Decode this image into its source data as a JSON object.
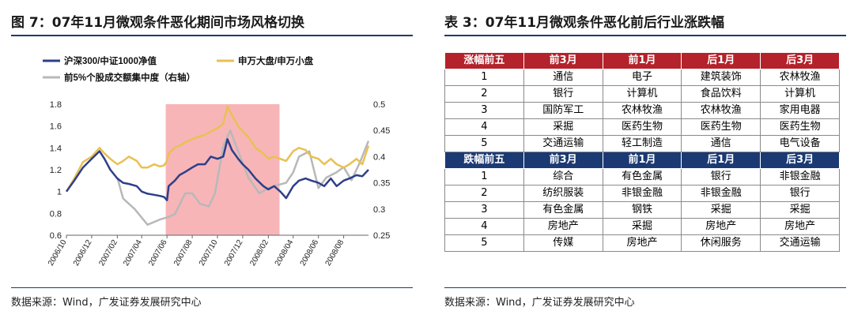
{
  "left_panel": {
    "title": "图 7：07年11月微观条件恶化期间市场风格切换",
    "source": "数据来源：Wind，广发证券发展研究中心"
  },
  "right_panel": {
    "title": "表 3：07年11月微观条件恶化前后行业涨跌幅",
    "source": "数据来源：Wind，广发证券发展研究中心"
  },
  "colors": {
    "series1": "#2d3f8a",
    "series2": "#e8c153",
    "series3": "#b8b8b8",
    "highlight": "#f6a8ac",
    "red_header": "#b4222b",
    "blue_header": "#1b3a73",
    "rule": "#1f3a6a"
  },
  "chart_data": {
    "type": "line",
    "title": "",
    "x": [
      "2006/10",
      "2006/12",
      "2007/02",
      "2007/04",
      "2007/06",
      "2007/08",
      "2007/10",
      "2007/12",
      "2008/02",
      "2008/04",
      "2008/06",
      "2008/08"
    ],
    "ylim": [
      0.6,
      1.8
    ],
    "yticks": [
      0.6,
      0.8,
      1,
      1.2,
      1.4,
      1.6,
      1.8
    ],
    "y2lim": [
      0.25,
      0.5
    ],
    "y2ticks": [
      0.25,
      0.3,
      0.35,
      0.4,
      0.45,
      0.5
    ],
    "legend": [
      "沪深300/中证1000净值",
      "申万大盘/申万小盘",
      "前5%个股成交额集中度（右轴）"
    ],
    "highlight_x_range": [
      "2007/05/29",
      "2008/02/28"
    ],
    "series": [
      {
        "name": "沪深300/中证1000净值",
        "axis": "left",
        "x": [
          "2006/10/01",
          "2006/10/20",
          "2006/11/10",
          "2006/12/01",
          "2006/12/20",
          "2007/01/01",
          "2007/01/15",
          "2007/02/01",
          "2007/02/15",
          "2007/03/01",
          "2007/03/20",
          "2007/04/01",
          "2007/04/15",
          "2007/05/01",
          "2007/05/15",
          "2007/05/25",
          "2007/06/01",
          "2007/06/05",
          "2007/06/20",
          "2007/07/01",
          "2007/07/15",
          "2007/08/01",
          "2007/08/15",
          "2007/09/01",
          "2007/09/15",
          "2007/10/01",
          "2007/10/15",
          "2007/10/25",
          "2007/11/05",
          "2007/11/20",
          "2007/12/01",
          "2007/12/15",
          "2008/01/01",
          "2008/01/20",
          "2008/02/01",
          "2008/02/15",
          "2008/03/01",
          "2008/03/15",
          "2008/04/01",
          "2008/04/15",
          "2008/05/01",
          "2008/05/15",
          "2008/06/01",
          "2008/06/15",
          "2008/07/01",
          "2008/07/15",
          "2008/08/01",
          "2008/08/15",
          "2008/09/01",
          "2008/09/15",
          "2008/09/30"
        ],
        "y": [
          1.0,
          1.1,
          1.22,
          1.3,
          1.37,
          1.3,
          1.2,
          1.12,
          1.08,
          1.07,
          1.05,
          1.0,
          0.98,
          0.97,
          0.96,
          0.95,
          0.92,
          1.05,
          1.1,
          1.15,
          1.18,
          1.22,
          1.25,
          1.25,
          1.32,
          1.3,
          1.32,
          1.48,
          1.38,
          1.3,
          1.25,
          1.2,
          1.12,
          1.05,
          1.02,
          1.05,
          1.0,
          0.94,
          1.05,
          1.1,
          1.12,
          1.1,
          1.08,
          1.05,
          1.12,
          1.05,
          1.1,
          1.12,
          1.15,
          1.14,
          1.2
        ]
      },
      {
        "name": "申万大盘/申万小盘",
        "axis": "left",
        "x": [
          "2006/10/01",
          "2006/10/20",
          "2006/11/10",
          "2006/12/01",
          "2006/12/20",
          "2007/01/01",
          "2007/01/15",
          "2007/02/01",
          "2007/02/15",
          "2007/03/01",
          "2007/03/20",
          "2007/04/01",
          "2007/04/15",
          "2007/05/01",
          "2007/05/15",
          "2007/05/25",
          "2007/06/01",
          "2007/06/05",
          "2007/06/20",
          "2007/07/01",
          "2007/07/15",
          "2007/08/01",
          "2007/08/15",
          "2007/09/01",
          "2007/09/15",
          "2007/10/01",
          "2007/10/15",
          "2007/10/25",
          "2007/11/05",
          "2007/11/20",
          "2007/12/01",
          "2007/12/15",
          "2008/01/01",
          "2008/01/20",
          "2008/02/01",
          "2008/02/15",
          "2008/03/01",
          "2008/03/15",
          "2008/04/01",
          "2008/04/15",
          "2008/05/01",
          "2008/05/15",
          "2008/06/01",
          "2008/06/15",
          "2008/07/01",
          "2008/07/15",
          "2008/08/01",
          "2008/08/15",
          "2008/09/01",
          "2008/09/15",
          "2008/09/30"
        ],
        "y": [
          1.0,
          1.12,
          1.27,
          1.32,
          1.4,
          1.35,
          1.3,
          1.25,
          1.28,
          1.32,
          1.28,
          1.22,
          1.22,
          1.25,
          1.23,
          1.24,
          1.28,
          1.35,
          1.4,
          1.42,
          1.45,
          1.48,
          1.5,
          1.52,
          1.55,
          1.58,
          1.62,
          1.78,
          1.7,
          1.6,
          1.55,
          1.5,
          1.4,
          1.35,
          1.3,
          1.32,
          1.3,
          1.28,
          1.37,
          1.4,
          1.38,
          1.32,
          1.3,
          1.25,
          1.3,
          1.25,
          1.22,
          1.25,
          1.3,
          1.25,
          1.42
        ]
      },
      {
        "name": "前5%个股成交额集中度（右轴）",
        "axis": "right",
        "x": [
          "2007/02/01",
          "2007/02/15",
          "2007/03/15",
          "2007/04/15",
          "2007/05/15",
          "2007/06/05",
          "2007/06/20",
          "2007/07/15",
          "2007/08/01",
          "2007/08/20",
          "2007/09/10",
          "2007/09/25",
          "2007/10/15",
          "2007/11/01",
          "2007/11/25",
          "2007/12/15",
          "2008/01/10",
          "2008/02/01",
          "2008/02/20",
          "2008/03/15",
          "2008/04/01",
          "2008/04/15",
          "2008/05/10",
          "2008/06/01",
          "2008/06/20",
          "2008/07/15",
          "2008/08/01",
          "2008/08/20",
          "2008/09/10",
          "2008/09/30"
        ],
        "y": [
          0.36,
          0.32,
          0.3,
          0.27,
          0.28,
          0.285,
          0.29,
          0.33,
          0.33,
          0.31,
          0.305,
          0.33,
          0.42,
          0.45,
          0.4,
          0.36,
          0.33,
          0.34,
          0.345,
          0.35,
          0.37,
          0.4,
          0.41,
          0.34,
          0.36,
          0.37,
          0.38,
          0.355,
          0.39,
          0.43
        ]
      }
    ]
  },
  "table": {
    "up_header": [
      "涨幅前五",
      "前3月",
      "前1月",
      "后1月",
      "后3月"
    ],
    "up_rows": [
      [
        "1",
        "通信",
        "电子",
        "建筑装饰",
        "农林牧渔"
      ],
      [
        "2",
        "银行",
        "计算机",
        "食品饮料",
        "计算机"
      ],
      [
        "3",
        "国防军工",
        "农林牧渔",
        "农林牧渔",
        "家用电器"
      ],
      [
        "4",
        "采掘",
        "医药生物",
        "医药生物",
        "医药生物"
      ],
      [
        "5",
        "交通运输",
        "轻工制造",
        "通信",
        "电气设备"
      ]
    ],
    "down_header": [
      "跌幅前五",
      "前3月",
      "前1月",
      "后1月",
      "后3月"
    ],
    "down_rows": [
      [
        "1",
        "综合",
        "有色金属",
        "银行",
        "非银金融"
      ],
      [
        "2",
        "纺织服装",
        "非银金融",
        "非银金融",
        "银行"
      ],
      [
        "3",
        "有色金属",
        "钢铁",
        "采掘",
        "采掘"
      ],
      [
        "4",
        "房地产",
        "采掘",
        "房地产",
        "房地产"
      ],
      [
        "5",
        "传媒",
        "房地产",
        "休闲服务",
        "交通运输"
      ]
    ]
  }
}
